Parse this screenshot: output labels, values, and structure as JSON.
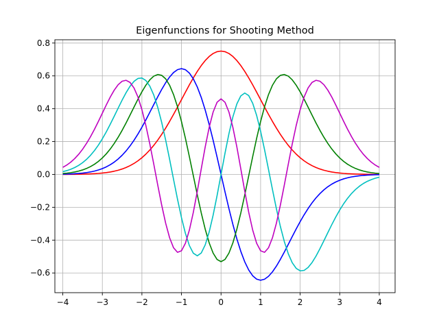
{
  "chart_data": {
    "type": "line",
    "title": "Eigenfunctions for Shooting Method",
    "xlabel": "",
    "ylabel": "",
    "xlim": [
      -4.2,
      4.4
    ],
    "ylim": [
      -0.72,
      0.82
    ],
    "xticks": [
      -4,
      -3,
      -2,
      -1,
      0,
      1,
      2,
      3,
      4
    ],
    "xtick_labels": [
      "−4",
      "−3",
      "−2",
      "−1",
      "0",
      "1",
      "2",
      "3",
      "4"
    ],
    "yticks": [
      -0.6,
      -0.4,
      -0.2,
      0.0,
      0.2,
      0.4,
      0.6,
      0.8
    ],
    "ytick_labels": [
      "−0.6",
      "−0.4",
      "−0.2",
      "0.0",
      "0.2",
      "0.4",
      "0.6",
      "0.8"
    ],
    "grid": true,
    "legend": "none",
    "x_range": [
      -4,
      4
    ],
    "series": [
      {
        "order": 0,
        "sign": 1,
        "color": "#ff0000"
      },
      {
        "order": 1,
        "sign": -1,
        "color": "#0000ff"
      },
      {
        "order": 2,
        "sign": 1,
        "color": "#008000"
      },
      {
        "order": 3,
        "sign": -1,
        "color": "#00bfbf"
      },
      {
        "order": 4,
        "sign": 1,
        "color": "#bf00bf"
      }
    ]
  }
}
